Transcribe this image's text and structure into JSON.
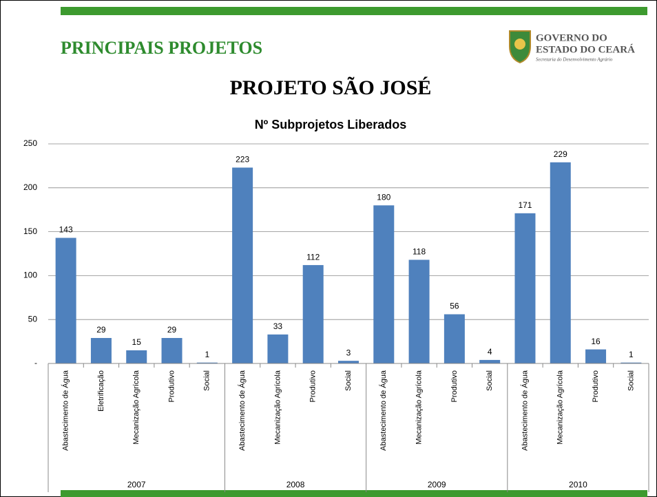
{
  "header": {
    "title": "PRINCIPAIS PROJETOS",
    "logo_line1": "GOVERNO DO",
    "logo_line2": "ESTADO DO CEARÁ",
    "logo_subtitle": "Secretaria do Desenvolvimento Agrário"
  },
  "heading": "PROJETO SÃO JOSÉ",
  "chart_data": {
    "type": "bar",
    "title": "Nº Subprojetos Liberados",
    "color": "#4f81bd",
    "grid": true,
    "ylim": [
      0,
      250
    ],
    "yticks": [
      {
        "value": 0,
        "label": "-"
      },
      50,
      100,
      150,
      200,
      250
    ],
    "groups": [
      {
        "label": "2007",
        "categories": [
          "Abastecimento de Água",
          "Eletrificação",
          "Mecanização Agrícola",
          "Produtivo",
          "Social"
        ],
        "values": [
          143,
          29,
          15,
          29,
          1
        ]
      },
      {
        "label": "2008",
        "categories": [
          "Abastecimento de Água",
          "Mecanização Agrícola",
          "Produtivo",
          "Social"
        ],
        "values": [
          223,
          33,
          112,
          3
        ]
      },
      {
        "label": "2009",
        "categories": [
          "Abastecimento de Água",
          "Mecanização Agrícola",
          "Produtivo",
          "Social"
        ],
        "values": [
          180,
          118,
          56,
          4
        ]
      },
      {
        "label": "2010",
        "categories": [
          "Abastecimento de Água",
          "Mecanização Agrícola",
          "Produtivo",
          "Social"
        ],
        "values": [
          171,
          229,
          16,
          1
        ]
      }
    ]
  }
}
